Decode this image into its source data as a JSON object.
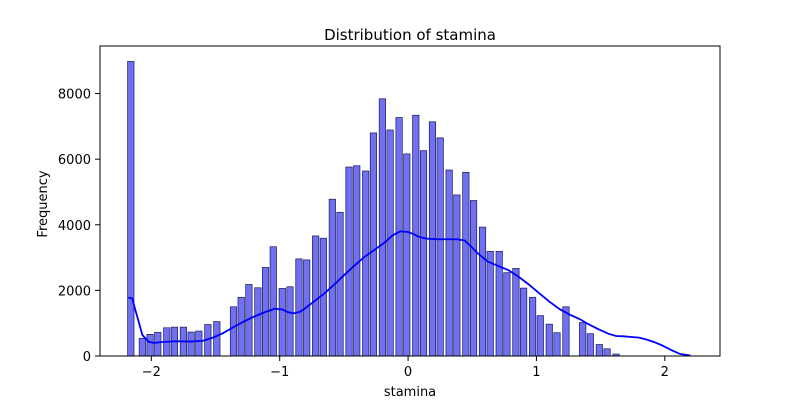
{
  "chart_data": {
    "type": "bar",
    "title": "Distribution of stamina",
    "xlabel": "stamina",
    "ylabel": "Frequency",
    "xlim": [
      -2.4,
      2.43
    ],
    "ylim": [
      0,
      9450
    ],
    "xticks": [
      -2,
      -1,
      0,
      1,
      2
    ],
    "xtick_labels": [
      "−2",
      "−1",
      "0",
      "1",
      "2"
    ],
    "yticks": [
      0,
      2000,
      4000,
      6000,
      8000
    ],
    "yticks_labels": [
      "0",
      "2000",
      "4000",
      "6000",
      "8000"
    ],
    "grid": false,
    "bin_width": 0.05,
    "bars": [
      {
        "x": -2.16,
        "value": 8980
      },
      {
        "x": -2.07,
        "value": 540
      },
      {
        "x": -2.01,
        "value": 660
      },
      {
        "x": -1.95,
        "value": 720
      },
      {
        "x": -1.88,
        "value": 860
      },
      {
        "x": -1.82,
        "value": 880
      },
      {
        "x": -1.75,
        "value": 880
      },
      {
        "x": -1.69,
        "value": 730
      },
      {
        "x": -1.63,
        "value": 760
      },
      {
        "x": -1.56,
        "value": 960
      },
      {
        "x": -1.49,
        "value": 1050
      },
      {
        "x": -1.36,
        "value": 1500
      },
      {
        "x": -1.3,
        "value": 1790
      },
      {
        "x": -1.24,
        "value": 2180
      },
      {
        "x": -1.17,
        "value": 2080
      },
      {
        "x": -1.11,
        "value": 2700
      },
      {
        "x": -1.05,
        "value": 3330
      },
      {
        "x": -0.98,
        "value": 2060
      },
      {
        "x": -0.92,
        "value": 2110
      },
      {
        "x": -0.85,
        "value": 2960
      },
      {
        "x": -0.79,
        "value": 2930
      },
      {
        "x": -0.72,
        "value": 3660
      },
      {
        "x": -0.66,
        "value": 3590
      },
      {
        "x": -0.59,
        "value": 4780
      },
      {
        "x": -0.53,
        "value": 4380
      },
      {
        "x": -0.46,
        "value": 5760
      },
      {
        "x": -0.4,
        "value": 5800
      },
      {
        "x": -0.33,
        "value": 5640
      },
      {
        "x": -0.27,
        "value": 6800
      },
      {
        "x": -0.2,
        "value": 7840
      },
      {
        "x": -0.14,
        "value": 6890
      },
      {
        "x": -0.07,
        "value": 7270
      },
      {
        "x": -0.01,
        "value": 6160
      },
      {
        "x": 0.06,
        "value": 7340
      },
      {
        "x": 0.12,
        "value": 6260
      },
      {
        "x": 0.19,
        "value": 7140
      },
      {
        "x": 0.25,
        "value": 6650
      },
      {
        "x": 0.32,
        "value": 5670
      },
      {
        "x": 0.38,
        "value": 4910
      },
      {
        "x": 0.45,
        "value": 5600
      },
      {
        "x": 0.51,
        "value": 4740
      },
      {
        "x": 0.58,
        "value": 3930
      },
      {
        "x": 0.64,
        "value": 3190
      },
      {
        "x": 0.71,
        "value": 3190
      },
      {
        "x": 0.77,
        "value": 2540
      },
      {
        "x": 0.84,
        "value": 2670
      },
      {
        "x": 0.9,
        "value": 2070
      },
      {
        "x": 0.97,
        "value": 1790
      },
      {
        "x": 1.03,
        "value": 1230
      },
      {
        "x": 1.1,
        "value": 970
      },
      {
        "x": 1.16,
        "value": 710
      },
      {
        "x": 1.23,
        "value": 1500
      },
      {
        "x": 1.36,
        "value": 1020
      },
      {
        "x": 1.42,
        "value": 680
      },
      {
        "x": 1.49,
        "value": 350
      },
      {
        "x": 1.55,
        "value": 220
      },
      {
        "x": 1.62,
        "value": 60
      }
    ],
    "kde": {
      "name": "",
      "color": "#0000ff",
      "x": [
        -2.18,
        -2.15,
        -2.11,
        -2.07,
        -2.02,
        -1.98,
        -1.9,
        -1.8,
        -1.7,
        -1.6,
        -1.52,
        -1.44,
        -1.36,
        -1.28,
        -1.2,
        -1.12,
        -1.04,
        -0.98,
        -0.94,
        -0.89,
        -0.84,
        -0.8,
        -0.74,
        -0.66,
        -0.58,
        -0.5,
        -0.42,
        -0.34,
        -0.26,
        -0.18,
        -0.12,
        -0.06,
        0.0,
        0.04,
        0.08,
        0.14,
        0.22,
        0.3,
        0.38,
        0.44,
        0.48,
        0.54,
        0.62,
        0.7,
        0.78,
        0.86,
        0.94,
        1.02,
        1.1,
        1.18,
        1.26,
        1.34,
        1.4,
        1.48,
        1.56,
        1.62,
        1.68,
        1.74,
        1.8,
        1.86,
        1.92,
        1.98,
        2.05,
        2.12,
        2.2
      ],
      "y": [
        1780,
        1760,
        1200,
        640,
        430,
        400,
        430,
        450,
        440,
        460,
        560,
        700,
        880,
        1050,
        1200,
        1330,
        1440,
        1420,
        1340,
        1300,
        1350,
        1460,
        1640,
        1880,
        2160,
        2460,
        2750,
        3020,
        3240,
        3470,
        3680,
        3800,
        3780,
        3720,
        3640,
        3580,
        3560,
        3560,
        3560,
        3520,
        3380,
        3140,
        2880,
        2750,
        2620,
        2420,
        2180,
        1920,
        1660,
        1430,
        1260,
        1120,
        980,
        820,
        680,
        610,
        600,
        580,
        560,
        500,
        420,
        320,
        180,
        60,
        15
      ]
    },
    "colors": {
      "bar_fill": "#7070f0",
      "bar_stroke": "#1a1a5a",
      "kde_line": "#0000ff",
      "axis": "#000000"
    }
  }
}
